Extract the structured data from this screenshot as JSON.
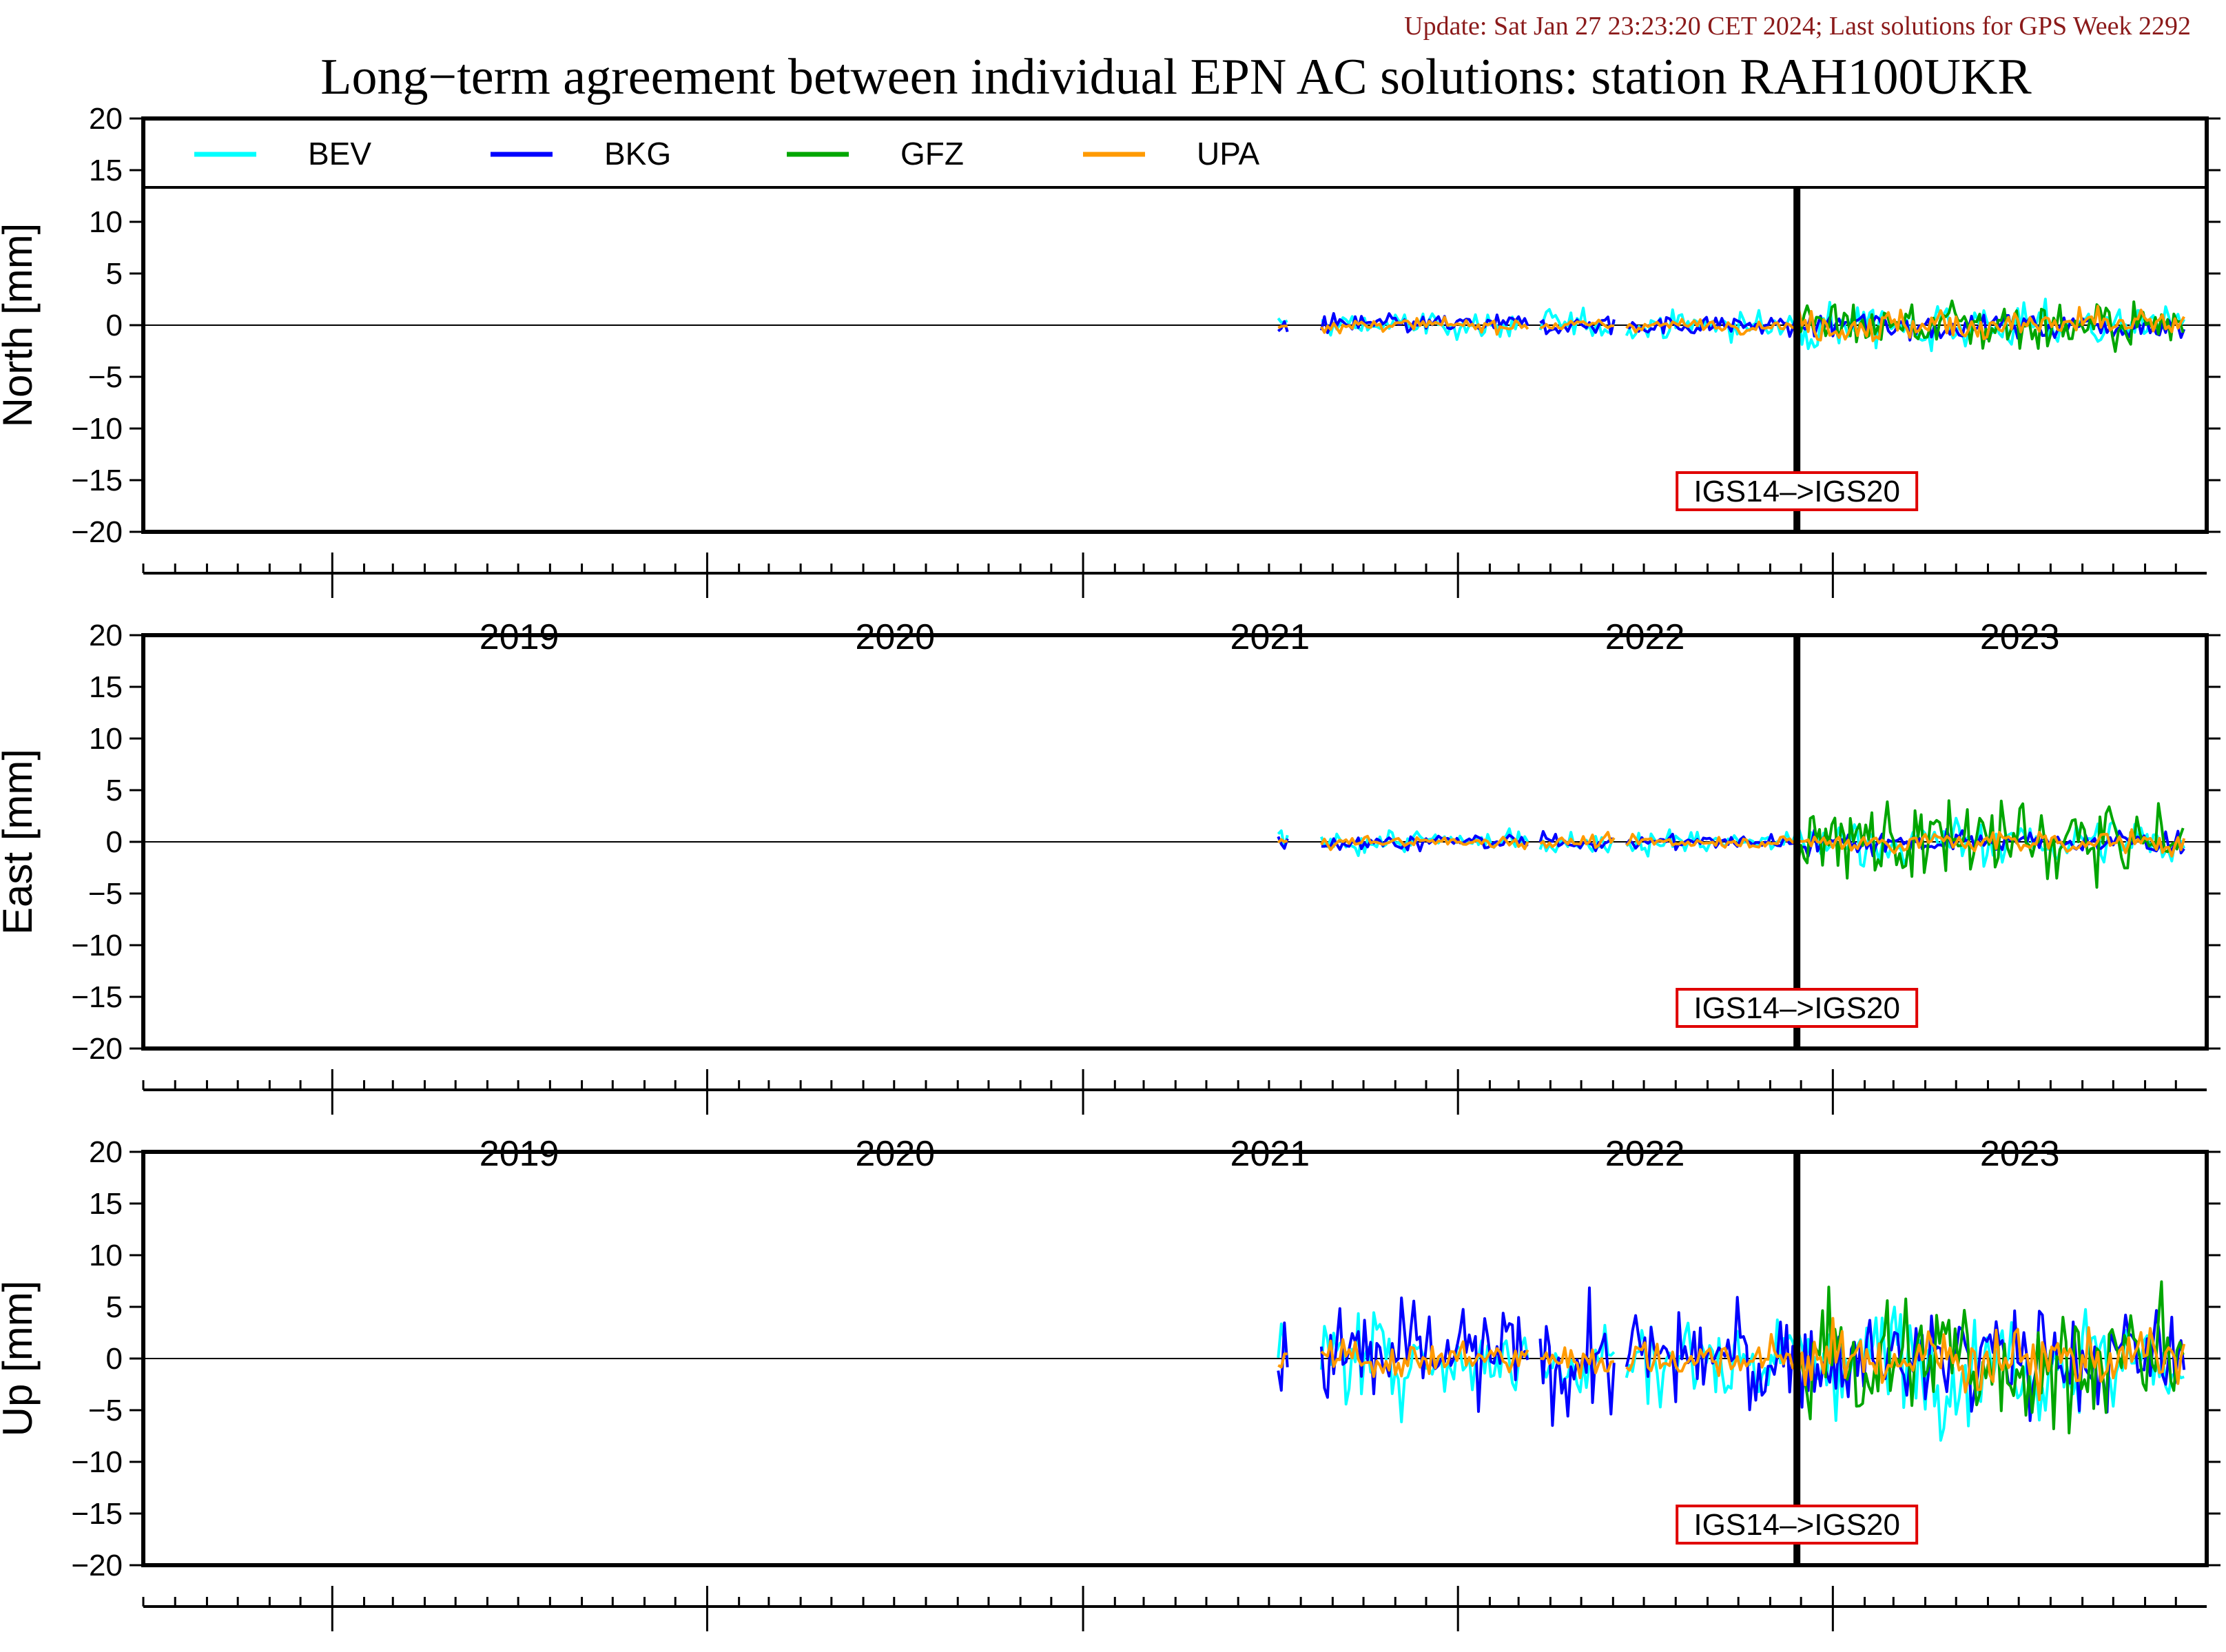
{
  "update_text": "Update: Sat Jan 27 23:23:20 CET 2024; Last solutions for GPS Week 2292",
  "chart_data": {
    "type": "line",
    "title": "Long−term agreement between individual EPN AC solutions: station RAH100UKR",
    "x_range": [
      "2018-07-01",
      "2023-12-31"
    ],
    "x_tick_labels": [
      "2019",
      "2020",
      "2021",
      "2022",
      "2023"
    ],
    "ylim": [
      -20,
      20
    ],
    "y_ticks": [
      20,
      15,
      10,
      5,
      0,
      -5,
      -10,
      -15,
      -20
    ],
    "y_tick_labels": [
      "20",
      "15",
      "10",
      "5",
      "0",
      "−5",
      "−10",
      "−15",
      "−20"
    ],
    "grid": false,
    "legend_position": "top",
    "series": [
      {
        "name": "BEV",
        "color": "#00ffff"
      },
      {
        "name": "BKG",
        "color": "#0000ff"
      },
      {
        "name": "GFZ",
        "color": "#00a600"
      },
      {
        "name": "UPA",
        "color": "#ff9a00"
      }
    ],
    "event": {
      "date": "2022-11-27",
      "label": "IGS14–>IGS20"
    },
    "data_start": "2021-07-10",
    "data_end": "2023-12-10",
    "panels": [
      {
        "ylabel": "North [mm]",
        "envelope": {
          "BEV": {
            "before": 0.7,
            "after": 1.2
          },
          "BKG": {
            "before": 0.5,
            "after": 0.7
          },
          "GFZ": {
            "before": 0.4,
            "after": 1.3
          },
          "UPA": {
            "before": 0.3,
            "after": 0.8
          }
        }
      },
      {
        "ylabel": "East [mm]",
        "envelope": {
          "BEV": {
            "before": 0.6,
            "after": 1.2
          },
          "BKG": {
            "before": 0.4,
            "after": 0.6
          },
          "GFZ": {
            "before": 0.3,
            "after": 2.2
          },
          "UPA": {
            "before": 0.3,
            "after": 0.6
          }
        }
      },
      {
        "ylabel": "Up [mm]",
        "envelope": {
          "BEV": {
            "before": 2.2,
            "after": 3.0
          },
          "BKG": {
            "before": 2.8,
            "after": 2.5
          },
          "GFZ": {
            "before": 0.8,
            "after": 3.4
          },
          "UPA": {
            "before": 0.9,
            "after": 1.6
          }
        }
      }
    ]
  }
}
